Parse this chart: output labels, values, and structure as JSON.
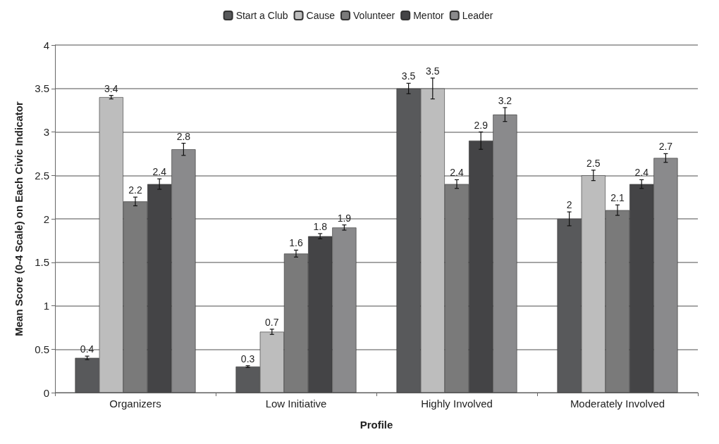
{
  "chart_data": {
    "type": "bar",
    "xlabel": "Profile",
    "ylabel": "Mean Score (0-4 Scale) on Each Civic Indicator",
    "categories": [
      "Organizers",
      "Low Initiative",
      "Highly Involved",
      "Moderately Involved"
    ],
    "series": [
      {
        "name": "Start a Club",
        "color": "#58595b",
        "values": [
          0.4,
          0.3,
          3.5,
          2
        ],
        "errors": [
          0.02,
          0.01,
          0.06,
          0.08
        ]
      },
      {
        "name": "Cause",
        "color": "#bdbdbd",
        "values": [
          3.4,
          0.7,
          3.5,
          2.5
        ],
        "errors": [
          0.02,
          0.03,
          0.12,
          0.06
        ]
      },
      {
        "name": "Volunteer",
        "color": "#7a7a7a",
        "values": [
          2.2,
          1.6,
          2.4,
          2.1
        ],
        "errors": [
          0.05,
          0.04,
          0.05,
          0.06
        ]
      },
      {
        "name": "Mentor",
        "color": "#444446",
        "values": [
          2.4,
          1.8,
          2.9,
          2.4
        ],
        "errors": [
          0.06,
          0.03,
          0.1,
          0.05
        ]
      },
      {
        "name": "Leader",
        "color": "#8a8a8c",
        "values": [
          2.8,
          1.9,
          3.2,
          2.7
        ],
        "errors": [
          0.07,
          0.03,
          0.08,
          0.05
        ]
      }
    ],
    "ylim": [
      0,
      4
    ],
    "yticks": [
      0,
      0.5,
      1,
      1.5,
      2,
      2.5,
      3,
      3.5,
      4
    ],
    "grid": "y",
    "legend": "top",
    "data_labels": true
  }
}
